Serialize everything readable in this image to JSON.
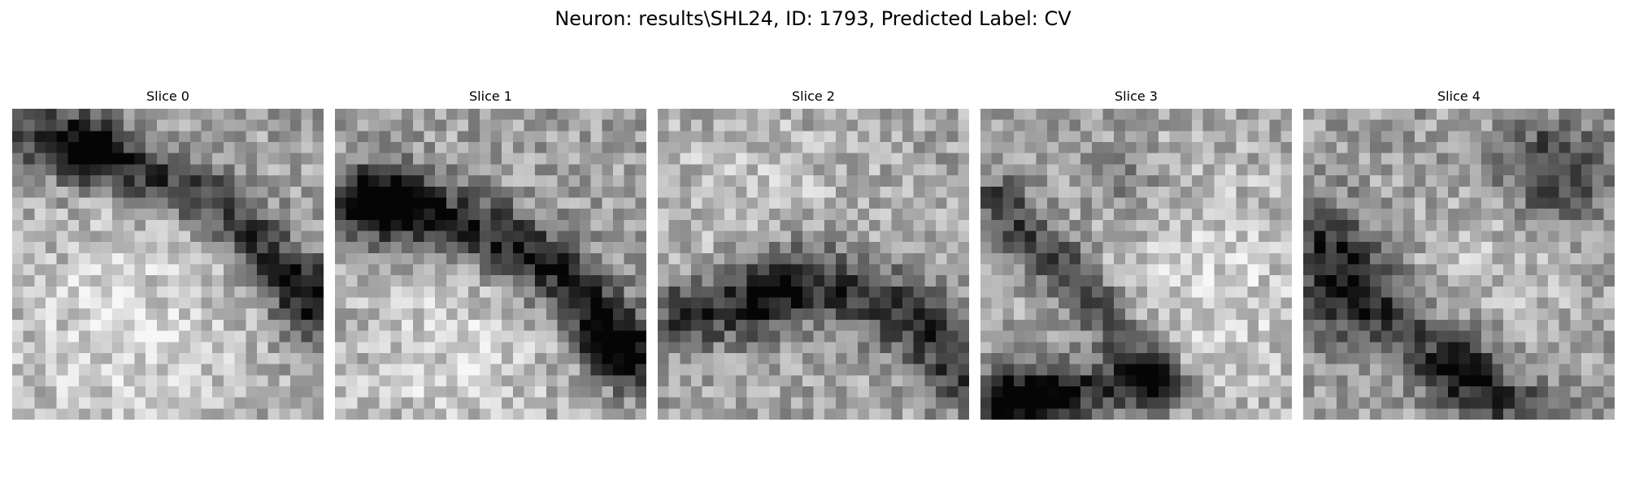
{
  "figure": {
    "title": "Neuron: results\\SHL24, ID: 1793, Predicted Label: CV"
  },
  "colormap": "gray",
  "slices": [
    {
      "label": "Slice 0",
      "grid": 28
    },
    {
      "label": "Slice 1",
      "grid": 28
    },
    {
      "label": "Slice 2",
      "grid": 28
    },
    {
      "label": "Slice 3",
      "grid": 28
    },
    {
      "label": "Slice 4",
      "grid": 28
    }
  ]
}
